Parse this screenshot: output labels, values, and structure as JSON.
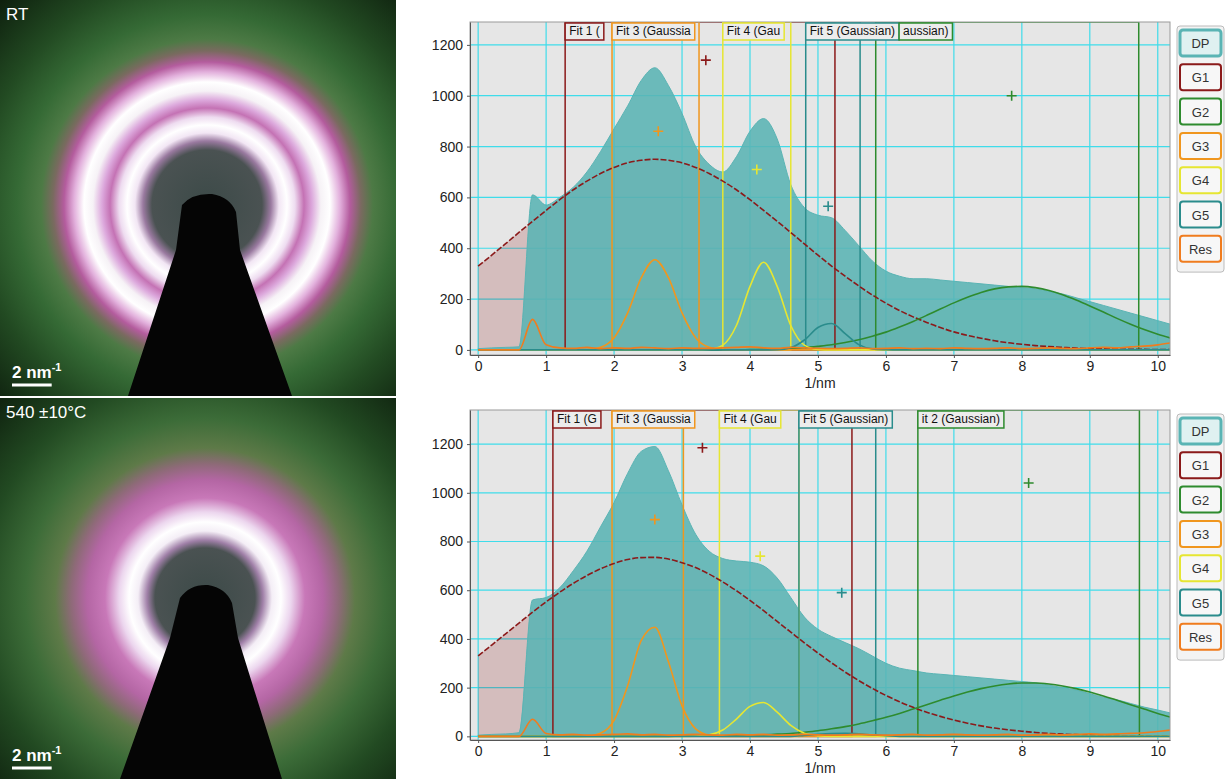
{
  "images": [
    {
      "label": "RT",
      "scale_bar": "2 nm",
      "scale_bar_exponent": "-1"
    },
    {
      "label": "540 ±10°C",
      "scale_bar": "2 nm",
      "scale_bar_exponent": "-1"
    }
  ],
  "chart_data": [
    {
      "type": "line",
      "xlabel": "1/nm",
      "grid": true,
      "legend": "right",
      "xlim": [
        -0.12,
        10.18
      ],
      "ylim": [
        -20,
        1290
      ],
      "xticks": [
        0,
        1,
        2,
        3,
        4,
        5,
        6,
        7,
        8,
        9,
        10
      ],
      "yticks": [
        0,
        200,
        400,
        600,
        800,
        1000,
        1200
      ],
      "x": [
        0,
        0.2,
        0.4,
        0.6,
        0.8,
        1,
        1.2,
        1.4,
        1.6,
        1.8,
        2,
        2.2,
        2.4,
        2.6,
        2.8,
        3,
        3.2,
        3.4,
        3.6,
        3.8,
        4,
        4.2,
        4.4,
        4.6,
        4.8,
        5,
        5.2,
        5.4,
        5.6,
        5.8,
        6,
        6.2,
        6.4,
        6.6,
        6.8,
        7,
        7.2,
        7.4,
        7.6,
        7.8,
        8,
        8.2,
        8.4,
        8.6,
        8.8,
        9,
        9.2,
        9.4,
        9.6,
        9.8,
        10,
        10.2
      ],
      "series": [
        {
          "name": "DP",
          "type": "area",
          "color": "#5ab4b4",
          "values": [
            5,
            8,
            10,
            12,
            610,
            570,
            600,
            640,
            700,
            780,
            870,
            960,
            1060,
            1110,
            1040,
            930,
            800,
            730,
            700,
            760,
            860,
            910,
            830,
            650,
            560,
            530,
            520,
            470,
            410,
            350,
            310,
            290,
            280,
            280,
            275,
            270,
            265,
            260,
            255,
            250,
            245,
            240,
            230,
            220,
            205,
            190,
            175,
            160,
            145,
            130,
            115,
            100
          ]
        },
        {
          "name": "G1",
          "type": "line",
          "color": "#8b1a1a",
          "values": [
            330,
            373,
            417,
            462,
            506,
            549,
            591,
            630,
            664,
            694,
            718,
            736,
            746,
            750,
            746,
            736,
            718,
            694,
            664,
            630,
            591,
            549,
            506,
            462,
            417,
            373,
            330,
            290,
            252,
            216,
            184,
            155,
            130,
            108,
            88,
            71,
            57,
            46,
            36,
            28,
            22,
            17,
            13,
            10,
            7,
            5,
            4,
            3,
            2,
            2,
            1,
            1
          ]
        },
        {
          "name": "G2",
          "type": "line",
          "color": "#2e8b2e",
          "values": [
            0,
            0,
            0,
            0,
            0,
            0,
            0,
            0,
            0,
            0,
            0,
            0,
            0,
            0,
            0,
            0,
            0,
            0,
            0,
            0,
            1,
            2,
            4,
            6,
            9,
            14,
            20,
            29,
            40,
            54,
            70,
            90,
            112,
            136,
            161,
            185,
            207,
            226,
            240,
            248,
            250,
            245,
            234,
            217,
            196,
            173,
            149,
            124,
            101,
            80,
            62,
            46
          ]
        },
        {
          "name": "G3",
          "type": "line",
          "color": "#f0961e",
          "values": [
            0,
            0,
            0,
            0,
            0,
            0,
            0,
            0,
            1,
            10,
            48,
            146,
            284,
            355,
            284,
            146,
            48,
            10,
            1,
            0,
            0,
            0,
            0,
            0,
            0,
            0,
            0,
            0,
            0,
            0,
            0,
            0,
            0,
            0,
            0,
            0,
            0,
            0,
            0,
            0,
            0,
            0,
            0,
            0,
            0,
            0,
            0,
            0,
            0,
            0,
            0,
            0
          ]
        },
        {
          "name": "G4",
          "type": "line",
          "color": "#e6e632",
          "values": [
            0,
            0,
            0,
            0,
            0,
            0,
            0,
            0,
            0,
            0,
            0,
            0,
            0,
            0,
            0,
            0,
            0,
            2,
            19,
            96,
            250,
            345,
            250,
            96,
            19,
            2,
            0,
            0,
            0,
            0,
            0,
            0,
            0,
            0,
            0,
            0,
            0,
            0,
            0,
            0,
            0,
            0,
            0,
            0,
            0,
            0,
            0,
            0,
            0,
            0,
            0,
            0
          ]
        },
        {
          "name": "G5",
          "type": "line",
          "color": "#2a8c8c",
          "values": [
            0,
            0,
            0,
            0,
            0,
            0,
            0,
            0,
            0,
            0,
            0,
            0,
            0,
            0,
            0,
            0,
            0,
            0,
            0,
            0,
            0,
            0,
            1,
            9,
            39,
            88,
            104,
            64,
            21,
            4,
            1,
            0,
            0,
            0,
            0,
            0,
            0,
            0,
            0,
            0,
            0,
            0,
            0,
            0,
            0,
            0,
            0,
            0,
            0,
            0,
            0,
            0
          ]
        },
        {
          "name": "Res",
          "type": "line",
          "color": "#f07c1e",
          "values": [
            0,
            0,
            0,
            0,
            120,
            20,
            8,
            6,
            10,
            5,
            8,
            6,
            10,
            8,
            5,
            8,
            6,
            6,
            8,
            10,
            12,
            8,
            6,
            10,
            8,
            6,
            5,
            6,
            8,
            5,
            6,
            8,
            5,
            6,
            5,
            8,
            6,
            5,
            6,
            8,
            5,
            6,
            8,
            6,
            5,
            8,
            10,
            8,
            12,
            15,
            20,
            28
          ]
        }
      ],
      "fits": [
        {
          "label": "Fit 1 (",
          "color": "#8b1a1a",
          "range": [
            1.28,
            5.25
          ],
          "marker": [
            3.35,
            1140
          ]
        },
        {
          "label": "Fit 3 (Gaussia",
          "color": "#f0961e",
          "range": [
            1.97,
            3.25
          ],
          "marker": [
            2.65,
            860
          ]
        },
        {
          "label": "Fit 4 (Gau",
          "color": "#e6e632",
          "range": [
            3.6,
            4.6
          ],
          "marker": [
            4.1,
            710
          ]
        },
        {
          "label": "Fit 5 (Gaussian)",
          "color": "#2a8c8c",
          "range": [
            4.82,
            5.62
          ],
          "marker": [
            5.15,
            565
          ]
        },
        {
          "label": "aussian)",
          "color": "#2e8b2e",
          "range": [
            5.85,
            9.72
          ],
          "marker": [
            7.85,
            1000
          ]
        }
      ]
    },
    {
      "type": "line",
      "xlabel": "1/nm",
      "grid": true,
      "legend": "right",
      "xlim": [
        -0.12,
        10.18
      ],
      "ylim": [
        -15,
        1340
      ],
      "xticks": [
        0,
        1,
        2,
        3,
        4,
        5,
        6,
        7,
        8,
        9,
        10
      ],
      "yticks": [
        0,
        200,
        400,
        600,
        800,
        1000,
        1200
      ],
      "x": [
        0,
        0.2,
        0.4,
        0.6,
        0.8,
        1,
        1.2,
        1.4,
        1.6,
        1.8,
        2,
        2.2,
        2.4,
        2.6,
        2.8,
        3,
        3.2,
        3.4,
        3.6,
        3.8,
        4,
        4.2,
        4.4,
        4.6,
        4.8,
        5,
        5.2,
        5.4,
        5.6,
        5.8,
        6,
        6.2,
        6.4,
        6.6,
        6.8,
        7,
        7.2,
        7.4,
        7.6,
        7.8,
        8,
        8.2,
        8.4,
        8.6,
        8.8,
        9,
        9.2,
        9.4,
        9.6,
        9.8,
        10,
        10.2
      ],
      "series": [
        {
          "name": "DP",
          "type": "area",
          "color": "#5ab4b4",
          "values": [
            5,
            8,
            10,
            15,
            560,
            570,
            610,
            680,
            760,
            860,
            960,
            1080,
            1170,
            1190,
            1090,
            950,
            830,
            760,
            730,
            720,
            715,
            700,
            650,
            570,
            490,
            440,
            410,
            385,
            360,
            330,
            300,
            280,
            270,
            260,
            255,
            250,
            245,
            240,
            235,
            230,
            225,
            220,
            210,
            200,
            190,
            175,
            160,
            150,
            135,
            120,
            108,
            95
          ]
        },
        {
          "name": "G1",
          "type": "line",
          "color": "#8b1a1a",
          "values": [
            330,
            375,
            420,
            465,
            510,
            552,
            592,
            628,
            660,
            688,
            710,
            726,
            734,
            735,
            728,
            713,
            693,
            666,
            634,
            598,
            558,
            516,
            472,
            428,
            384,
            342,
            302,
            264,
            229,
            197,
            168,
            142,
            119,
            99,
            82,
            67,
            54,
            43,
            34,
            27,
            21,
            16,
            12,
            9,
            7,
            5,
            4,
            3,
            2,
            2,
            1,
            1
          ]
        },
        {
          "name": "G2",
          "type": "line",
          "color": "#2e8b2e",
          "values": [
            0,
            0,
            0,
            0,
            0,
            0,
            0,
            0,
            0,
            0,
            0,
            0,
            0,
            0,
            0,
            1,
            1,
            1,
            2,
            3,
            4,
            6,
            9,
            12,
            17,
            23,
            31,
            40,
            51,
            64,
            78,
            94,
            112,
            130,
            148,
            166,
            182,
            196,
            207,
            215,
            219,
            219,
            215,
            207,
            196,
            182,
            166,
            148,
            130,
            112,
            94,
            78
          ]
        },
        {
          "name": "G3",
          "type": "line",
          "color": "#f0961e",
          "values": [
            0,
            0,
            0,
            0,
            0,
            0,
            0,
            0,
            1,
            13,
            66,
            208,
            394,
            448,
            306,
            125,
            31,
            5,
            0,
            0,
            0,
            0,
            0,
            0,
            0,
            0,
            0,
            0,
            0,
            0,
            0,
            0,
            0,
            0,
            0,
            0,
            0,
            0,
            0,
            0,
            0,
            0,
            0,
            0,
            0,
            0,
            0,
            0,
            0,
            0,
            0,
            0
          ]
        },
        {
          "name": "G4",
          "type": "line",
          "color": "#e6e632",
          "values": [
            0,
            0,
            0,
            0,
            0,
            0,
            0,
            0,
            0,
            0,
            0,
            0,
            0,
            0,
            0,
            0,
            1,
            6,
            26,
            71,
            123,
            139,
            99,
            45,
            13,
            3,
            0,
            0,
            0,
            0,
            0,
            0,
            0,
            0,
            0,
            0,
            0,
            0,
            0,
            0,
            0,
            0,
            0,
            0,
            0,
            0,
            0,
            0,
            0,
            0,
            0,
            0
          ]
        },
        {
          "name": "G5",
          "type": "line",
          "color": "#2a8c8c",
          "values": [
            0,
            0,
            0,
            0,
            0,
            0,
            0,
            0,
            0,
            0,
            0,
            0,
            0,
            0,
            0,
            0,
            0,
            0,
            0,
            0,
            0,
            0,
            0,
            0,
            4,
            8,
            11,
            12,
            10,
            6,
            3,
            0,
            0,
            0,
            0,
            0,
            0,
            0,
            0,
            0,
            0,
            0,
            0,
            0,
            0,
            0,
            0,
            0,
            0,
            0,
            0,
            0
          ]
        },
        {
          "name": "Res",
          "type": "line",
          "color": "#f07c1e",
          "values": [
            0,
            0,
            0,
            0,
            70,
            12,
            6,
            8,
            5,
            6,
            8,
            10,
            6,
            8,
            5,
            6,
            8,
            6,
            5,
            8,
            6,
            8,
            5,
            6,
            8,
            6,
            5,
            6,
            8,
            6,
            5,
            6,
            8,
            5,
            6,
            8,
            6,
            5,
            6,
            8,
            5,
            6,
            8,
            6,
            8,
            10,
            8,
            10,
            12,
            15,
            20,
            26
          ]
        }
      ],
      "fits": [
        {
          "label": "Fit 1 (G",
          "color": "#8b1a1a",
          "range": [
            1.1,
            5.5
          ],
          "marker": [
            3.3,
            1185
          ]
        },
        {
          "label": "Fit 3 (Gaussia",
          "color": "#f0961e",
          "range": [
            1.97,
            3.02
          ],
          "marker": [
            2.6,
            890
          ]
        },
        {
          "label": "Fit 4 (Gau",
          "color": "#e6e632",
          "range": [
            3.55,
            4.72
          ],
          "marker": [
            4.15,
            740
          ]
        },
        {
          "label": "Fit 5 (Gaussian)",
          "color": "#2a8c8c",
          "range": [
            4.72,
            5.85
          ],
          "marker": [
            5.35,
            590
          ]
        },
        {
          "label": "it 2 (Gaussian)",
          "color": "#2e8b2e",
          "range": [
            6.47,
            9.73
          ],
          "marker": [
            8.1,
            1040
          ]
        }
      ]
    }
  ]
}
